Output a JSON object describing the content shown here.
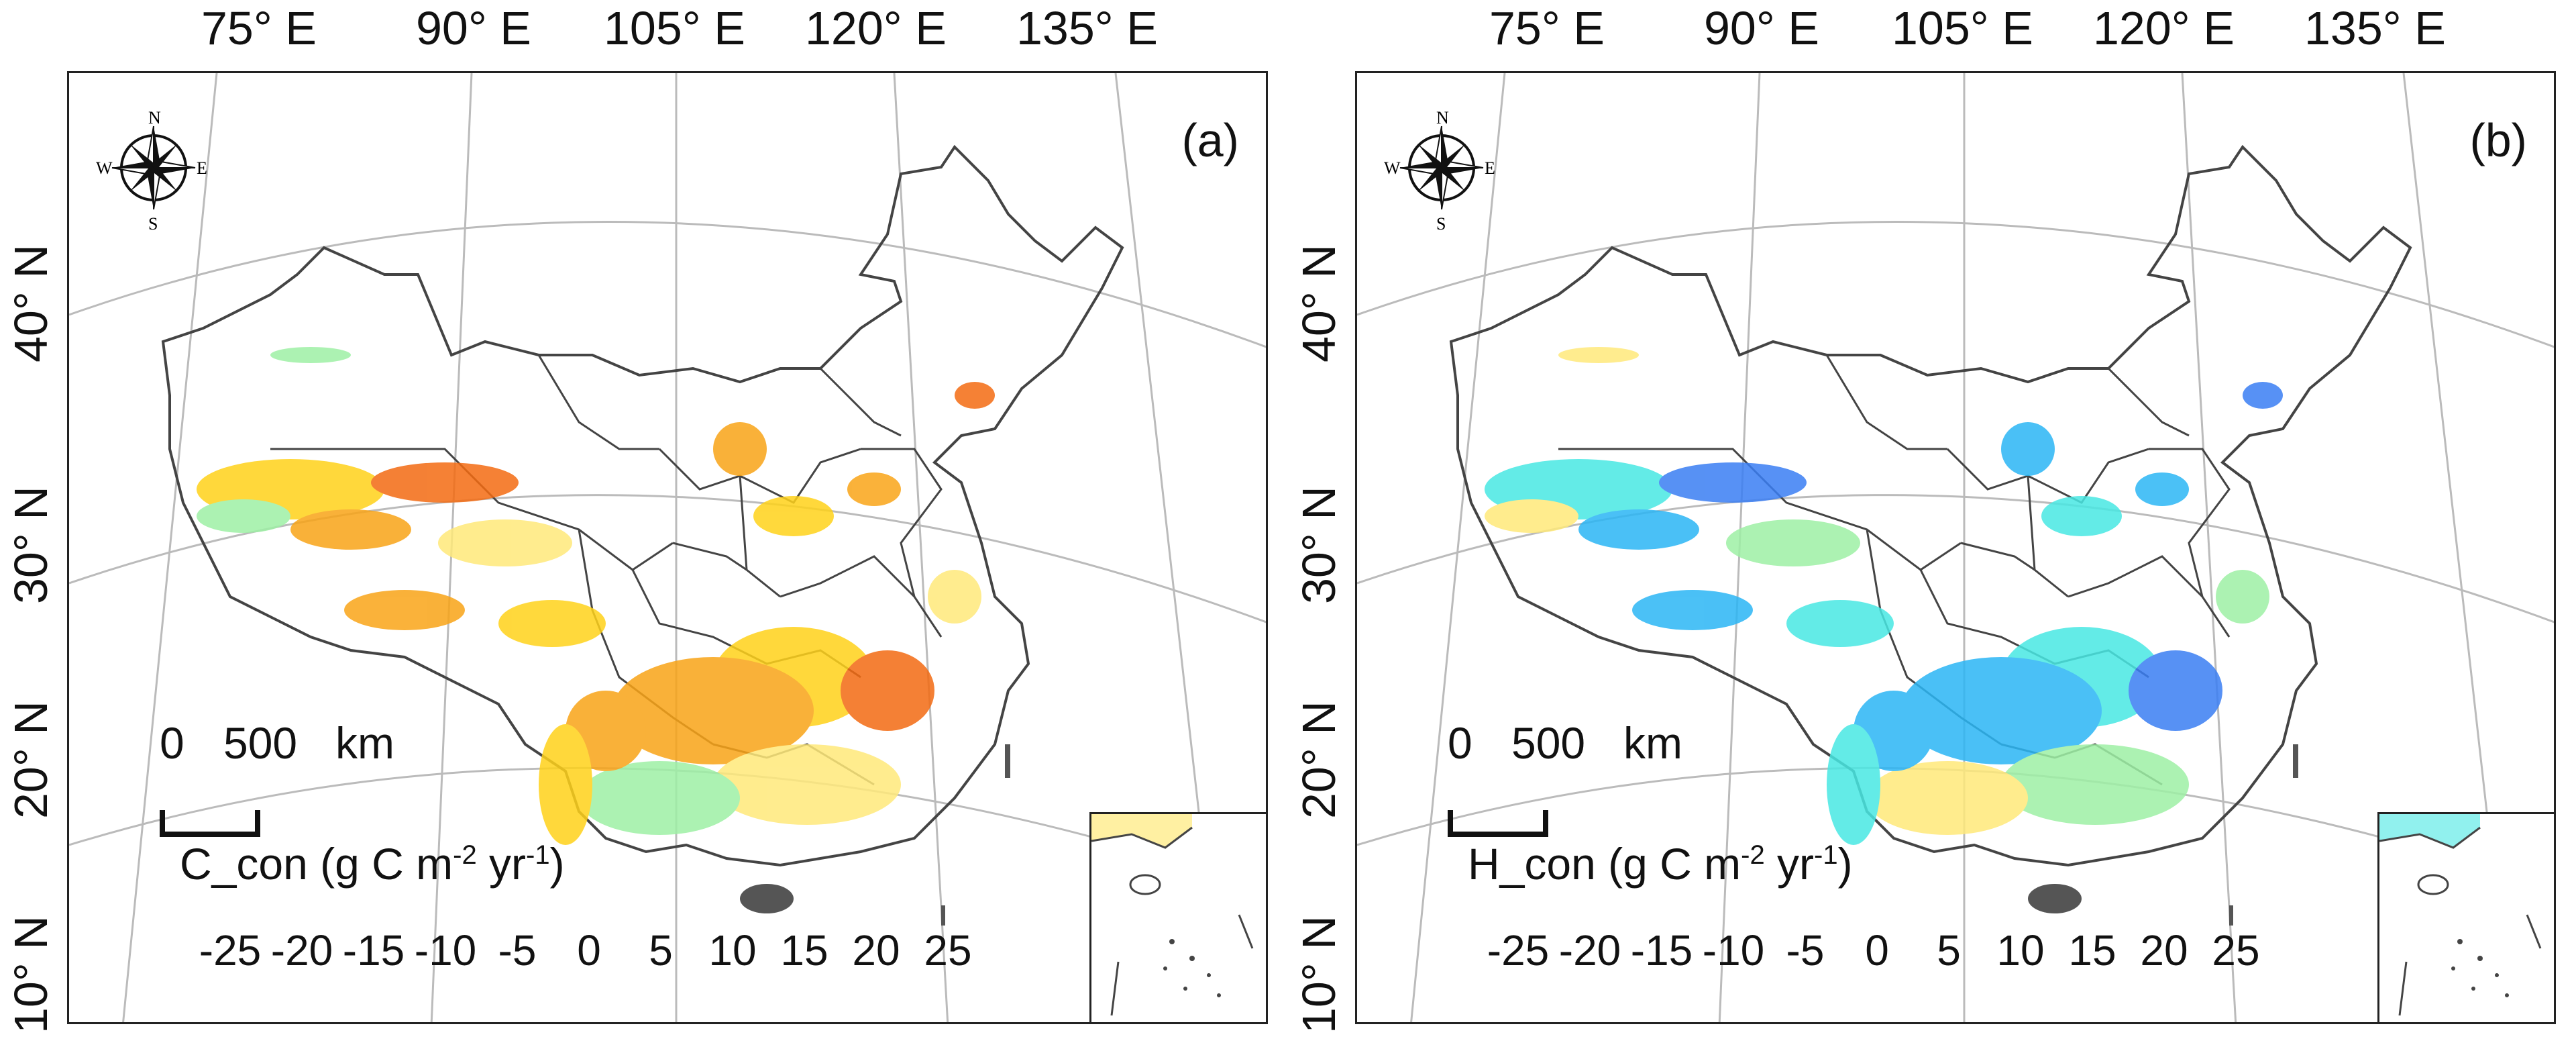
{
  "longitude_labels": [
    "75° E",
    "90° E",
    "105° E",
    "120° E",
    "135° E"
  ],
  "latitude_labels": [
    "40° N",
    "30° N",
    "20° N",
    "10° N"
  ],
  "scale_bar": {
    "start": "0",
    "end": "500",
    "unit": "km"
  },
  "compass_letters": {
    "n": "N",
    "s": "S",
    "e": "E",
    "w": "W"
  },
  "legend_ticks": [
    "-25",
    "-20",
    "-15",
    "-10",
    "-5",
    "0",
    "5",
    "10",
    "15",
    "20",
    "25"
  ],
  "legend_colors": [
    "#e8211a",
    "#f36b12",
    "#f9a417",
    "#ffd21a",
    "#ffe97a",
    "#f8f59c",
    "#9ef0a5",
    "#48e8e3",
    "#2bb6f5",
    "#3a7ef3",
    "#2a49e3",
    "#0a12e6"
  ],
  "panels": [
    {
      "id": "a",
      "label": "(a)",
      "title_prefix": "C_con",
      "title_unit": "(g C m",
      "title_exp1": "-2",
      "title_mid": " yr",
      "title_exp2": "-1",
      "title_end": ")",
      "pattern": "positive"
    },
    {
      "id": "b",
      "label": "(b)",
      "title_prefix": "H_con",
      "title_unit": "(g C m",
      "title_exp1": "-2",
      "title_mid": " yr",
      "title_exp2": "-1",
      "title_end": ")",
      "pattern": "negative"
    }
  ]
}
